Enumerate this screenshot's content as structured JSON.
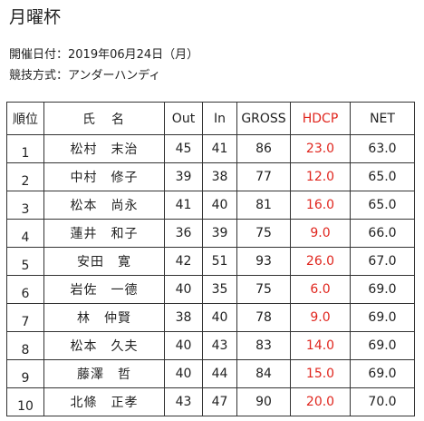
{
  "page": {
    "title": "月曜杯",
    "date_line": "開催日付：2019年06月24日（月）",
    "format_line": "競技方式：アンダーハンディ"
  },
  "table": {
    "headers": {
      "rank": "順位",
      "name": "氏　名",
      "out": "Out",
      "in": "In",
      "gross": "GROSS",
      "hdcp": "HDCP",
      "net": "NET"
    },
    "rows": [
      {
        "rank": "1",
        "name": "松村　末治",
        "out": "45",
        "in": "41",
        "gross": "86",
        "hdcp": "23.0",
        "net": "63.0"
      },
      {
        "rank": "2",
        "name": "中村　修子",
        "out": "39",
        "in": "38",
        "gross": "77",
        "hdcp": "12.0",
        "net": "65.0"
      },
      {
        "rank": "3",
        "name": "松本　尚永",
        "out": "41",
        "in": "40",
        "gross": "81",
        "hdcp": "16.0",
        "net": "65.0"
      },
      {
        "rank": "4",
        "name": "蓮井　和子",
        "out": "36",
        "in": "39",
        "gross": "75",
        "hdcp": "9.0",
        "net": "66.0"
      },
      {
        "rank": "5",
        "name": "安田　寛",
        "out": "42",
        "in": "51",
        "gross": "93",
        "hdcp": "26.0",
        "net": "67.0"
      },
      {
        "rank": "6",
        "name": "岩佐　一德",
        "out": "40",
        "in": "35",
        "gross": "75",
        "hdcp": "6.0",
        "net": "69.0"
      },
      {
        "rank": "7",
        "name": "林　仲賢",
        "out": "38",
        "in": "40",
        "gross": "78",
        "hdcp": "9.0",
        "net": "69.0"
      },
      {
        "rank": "8",
        "name": "松本　久夫",
        "out": "40",
        "in": "43",
        "gross": "83",
        "hdcp": "14.0",
        "net": "69.0"
      },
      {
        "rank": "9",
        "name": "藤澤　哲",
        "out": "40",
        "in": "44",
        "gross": "84",
        "hdcp": "15.0",
        "net": "69.0"
      },
      {
        "rank": "10",
        "name": "北條　正孝",
        "out": "43",
        "in": "47",
        "gross": "90",
        "hdcp": "20.0",
        "net": "70.0"
      }
    ]
  },
  "colors": {
    "hdcp": "#e0261e",
    "border": "#333333",
    "text": "#222222"
  }
}
